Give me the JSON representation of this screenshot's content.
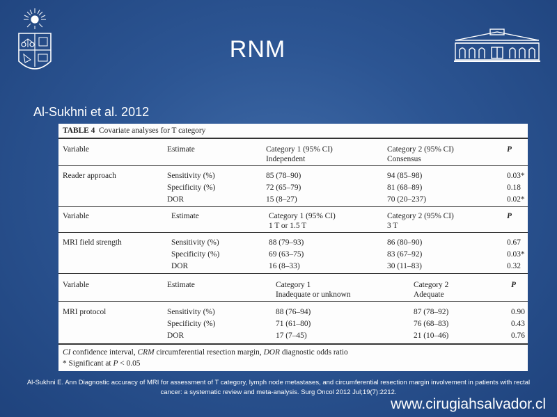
{
  "slide": {
    "title": "RNM",
    "subtitle": "Al-Sukhni et al. 2012",
    "website": "www.cirugiahsalvador.cl",
    "footnote_line1": "Al-Sukhni E. Ann Diagnostic accuracy of MRI for assessment of T category, lymph node metastases, and circumferential resection margin involvement in patients with rectal",
    "footnote_line2": "cancer: a systematic review and meta-analysis. Surg Oncol 2012 Jul;19(7):2212."
  },
  "table": {
    "title_bold": "TABLE 4",
    "title_rest": "Covariate analyses for T category",
    "sections": [
      {
        "header": [
          "Variable",
          "Estimate",
          "Category 1 (95% CI)",
          "Category 2 (95% CI)",
          "P"
        ],
        "subheader": [
          "",
          "",
          "Independent",
          "Consensus",
          ""
        ],
        "name": "Reader approach",
        "rows": [
          [
            "Sensitivity (%)",
            "85 (78–90)",
            "94 (85–98)",
            "0.03*"
          ],
          [
            "Specificity (%)",
            "72 (65–79)",
            "81 (68–89)",
            "0.18"
          ],
          [
            "DOR",
            "15 (8–27)",
            "70 (20–237)",
            "0.02*"
          ]
        ]
      },
      {
        "header": [
          "Variable",
          "Estimate",
          "Category 1 (95% CI)",
          "Category 2 (95% CI)",
          "P"
        ],
        "subheader": [
          "",
          "",
          "1 T or 1.5 T",
          "3 T",
          ""
        ],
        "name": "MRI field strength",
        "rows": [
          [
            "Sensitivity (%)",
            "88 (79–93)",
            "86 (80–90)",
            "0.67"
          ],
          [
            "Specificity (%)",
            "69 (63–75)",
            "83 (67–92)",
            "0.03*"
          ],
          [
            "DOR",
            "16 (8–33)",
            "30 (11–83)",
            "0.32"
          ]
        ]
      },
      {
        "header": [
          "Variable",
          "Estimate",
          "Category 1",
          "Category 2",
          "P"
        ],
        "subheader": [
          "",
          "",
          "Inadequate or unknown",
          "Adequate",
          ""
        ],
        "name": "MRI protocol",
        "rows": [
          [
            "Sensitivity (%)",
            "88 (76–94)",
            "87 (78–92)",
            "0.90"
          ],
          [
            "Specificity (%)",
            "71 (61–80)",
            "76 (68–83)",
            "0.43"
          ],
          [
            "DOR",
            "17 (7–45)",
            "21 (10–46)",
            "0.76"
          ]
        ]
      }
    ],
    "footer": {
      "abbrev": [
        {
          "text": "CI",
          "italic": true
        },
        {
          "text": " confidence interval, ",
          "italic": false
        },
        {
          "text": "CRM",
          "italic": true
        },
        {
          "text": " circumferential resection margin, ",
          "italic": false
        },
        {
          "text": "DOR",
          "italic": true
        },
        {
          "text": " diagnostic odds ratio",
          "italic": false
        }
      ],
      "significance_prefix": "* Significant at ",
      "significance_var": "P",
      "significance_suffix": " < 0.05"
    }
  }
}
